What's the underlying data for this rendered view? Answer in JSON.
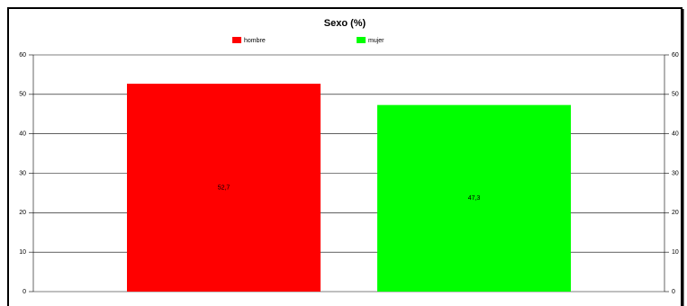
{
  "chart_data": {
    "type": "bar",
    "title": "Sexo (%)",
    "categories": [
      null
    ],
    "series": [
      {
        "name": "hombre",
        "color": "#ff0000",
        "values": [
          52.7
        ],
        "value_labels": [
          "52,7"
        ]
      },
      {
        "name": "mujer",
        "color": "#00ff00",
        "values": [
          47.3
        ],
        "value_labels": [
          "47,3"
        ]
      }
    ],
    "ylim": [
      0,
      60
    ],
    "yticks": [
      0,
      10,
      20,
      30,
      40,
      50,
      60
    ],
    "y2lim": [
      0,
      60
    ],
    "y2ticks": [
      0,
      10,
      20,
      30,
      40,
      50,
      60
    ],
    "grid": true,
    "legend": "top"
  }
}
